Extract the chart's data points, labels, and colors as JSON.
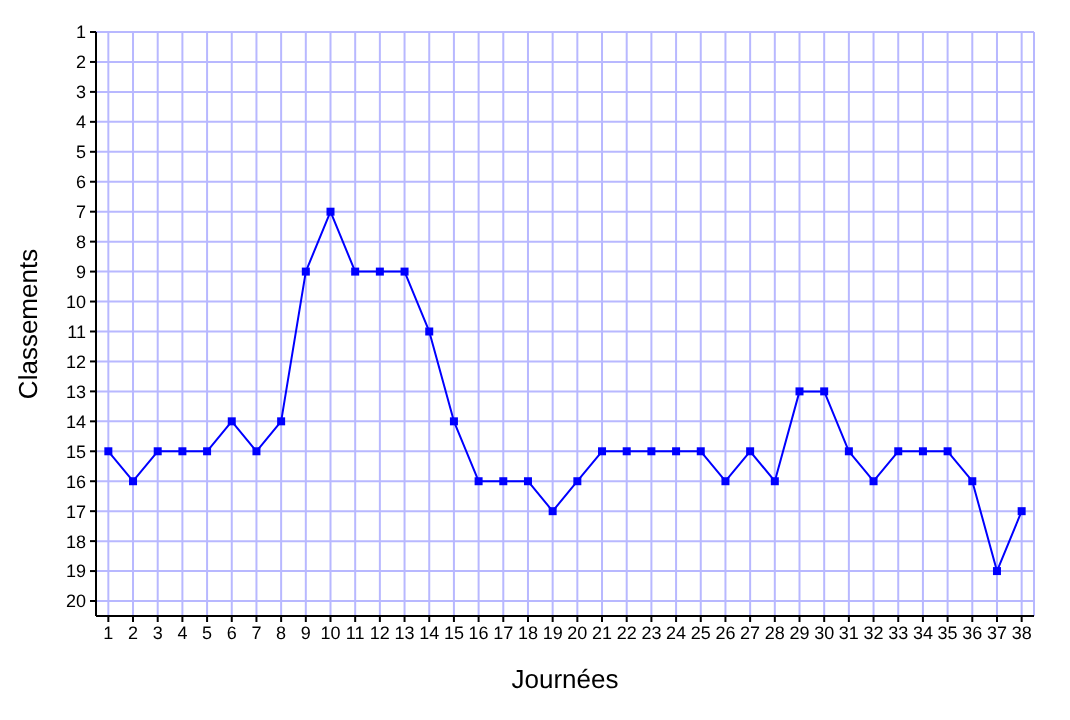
{
  "chart_data": {
    "type": "line",
    "xlabel": "Journées",
    "ylabel": "Classements",
    "x": [
      1,
      2,
      3,
      4,
      5,
      6,
      7,
      8,
      9,
      10,
      11,
      12,
      13,
      14,
      15,
      16,
      17,
      18,
      19,
      20,
      21,
      22,
      23,
      24,
      25,
      26,
      27,
      28,
      29,
      30,
      31,
      32,
      33,
      34,
      35,
      36,
      37,
      38
    ],
    "series": [
      {
        "color": "#0000ff",
        "values": [
          15,
          16,
          15,
          15,
          15,
          14,
          15,
          14,
          9,
          7,
          9,
          9,
          9,
          11,
          14,
          16,
          16,
          16,
          17,
          16,
          15,
          15,
          15,
          15,
          15,
          16,
          15,
          16,
          13,
          13,
          15,
          16,
          15,
          15,
          15,
          16,
          19,
          17
        ]
      }
    ],
    "xlim": [
      0.5,
      38.5
    ],
    "xticks": [
      1,
      2,
      3,
      4,
      5,
      6,
      7,
      8,
      9,
      10,
      11,
      12,
      13,
      14,
      15,
      16,
      17,
      18,
      19,
      20,
      21,
      22,
      23,
      24,
      25,
      26,
      27,
      28,
      29,
      30,
      31,
      32,
      33,
      34,
      35,
      36,
      37,
      38
    ],
    "ylim": [
      20.5,
      1
    ],
    "yticks": [
      1,
      2,
      3,
      4,
      5,
      6,
      7,
      8,
      9,
      10,
      11,
      12,
      13,
      14,
      15,
      16,
      17,
      18,
      19,
      20
    ],
    "grid": true,
    "marker": "square",
    "line_style": "solid"
  }
}
